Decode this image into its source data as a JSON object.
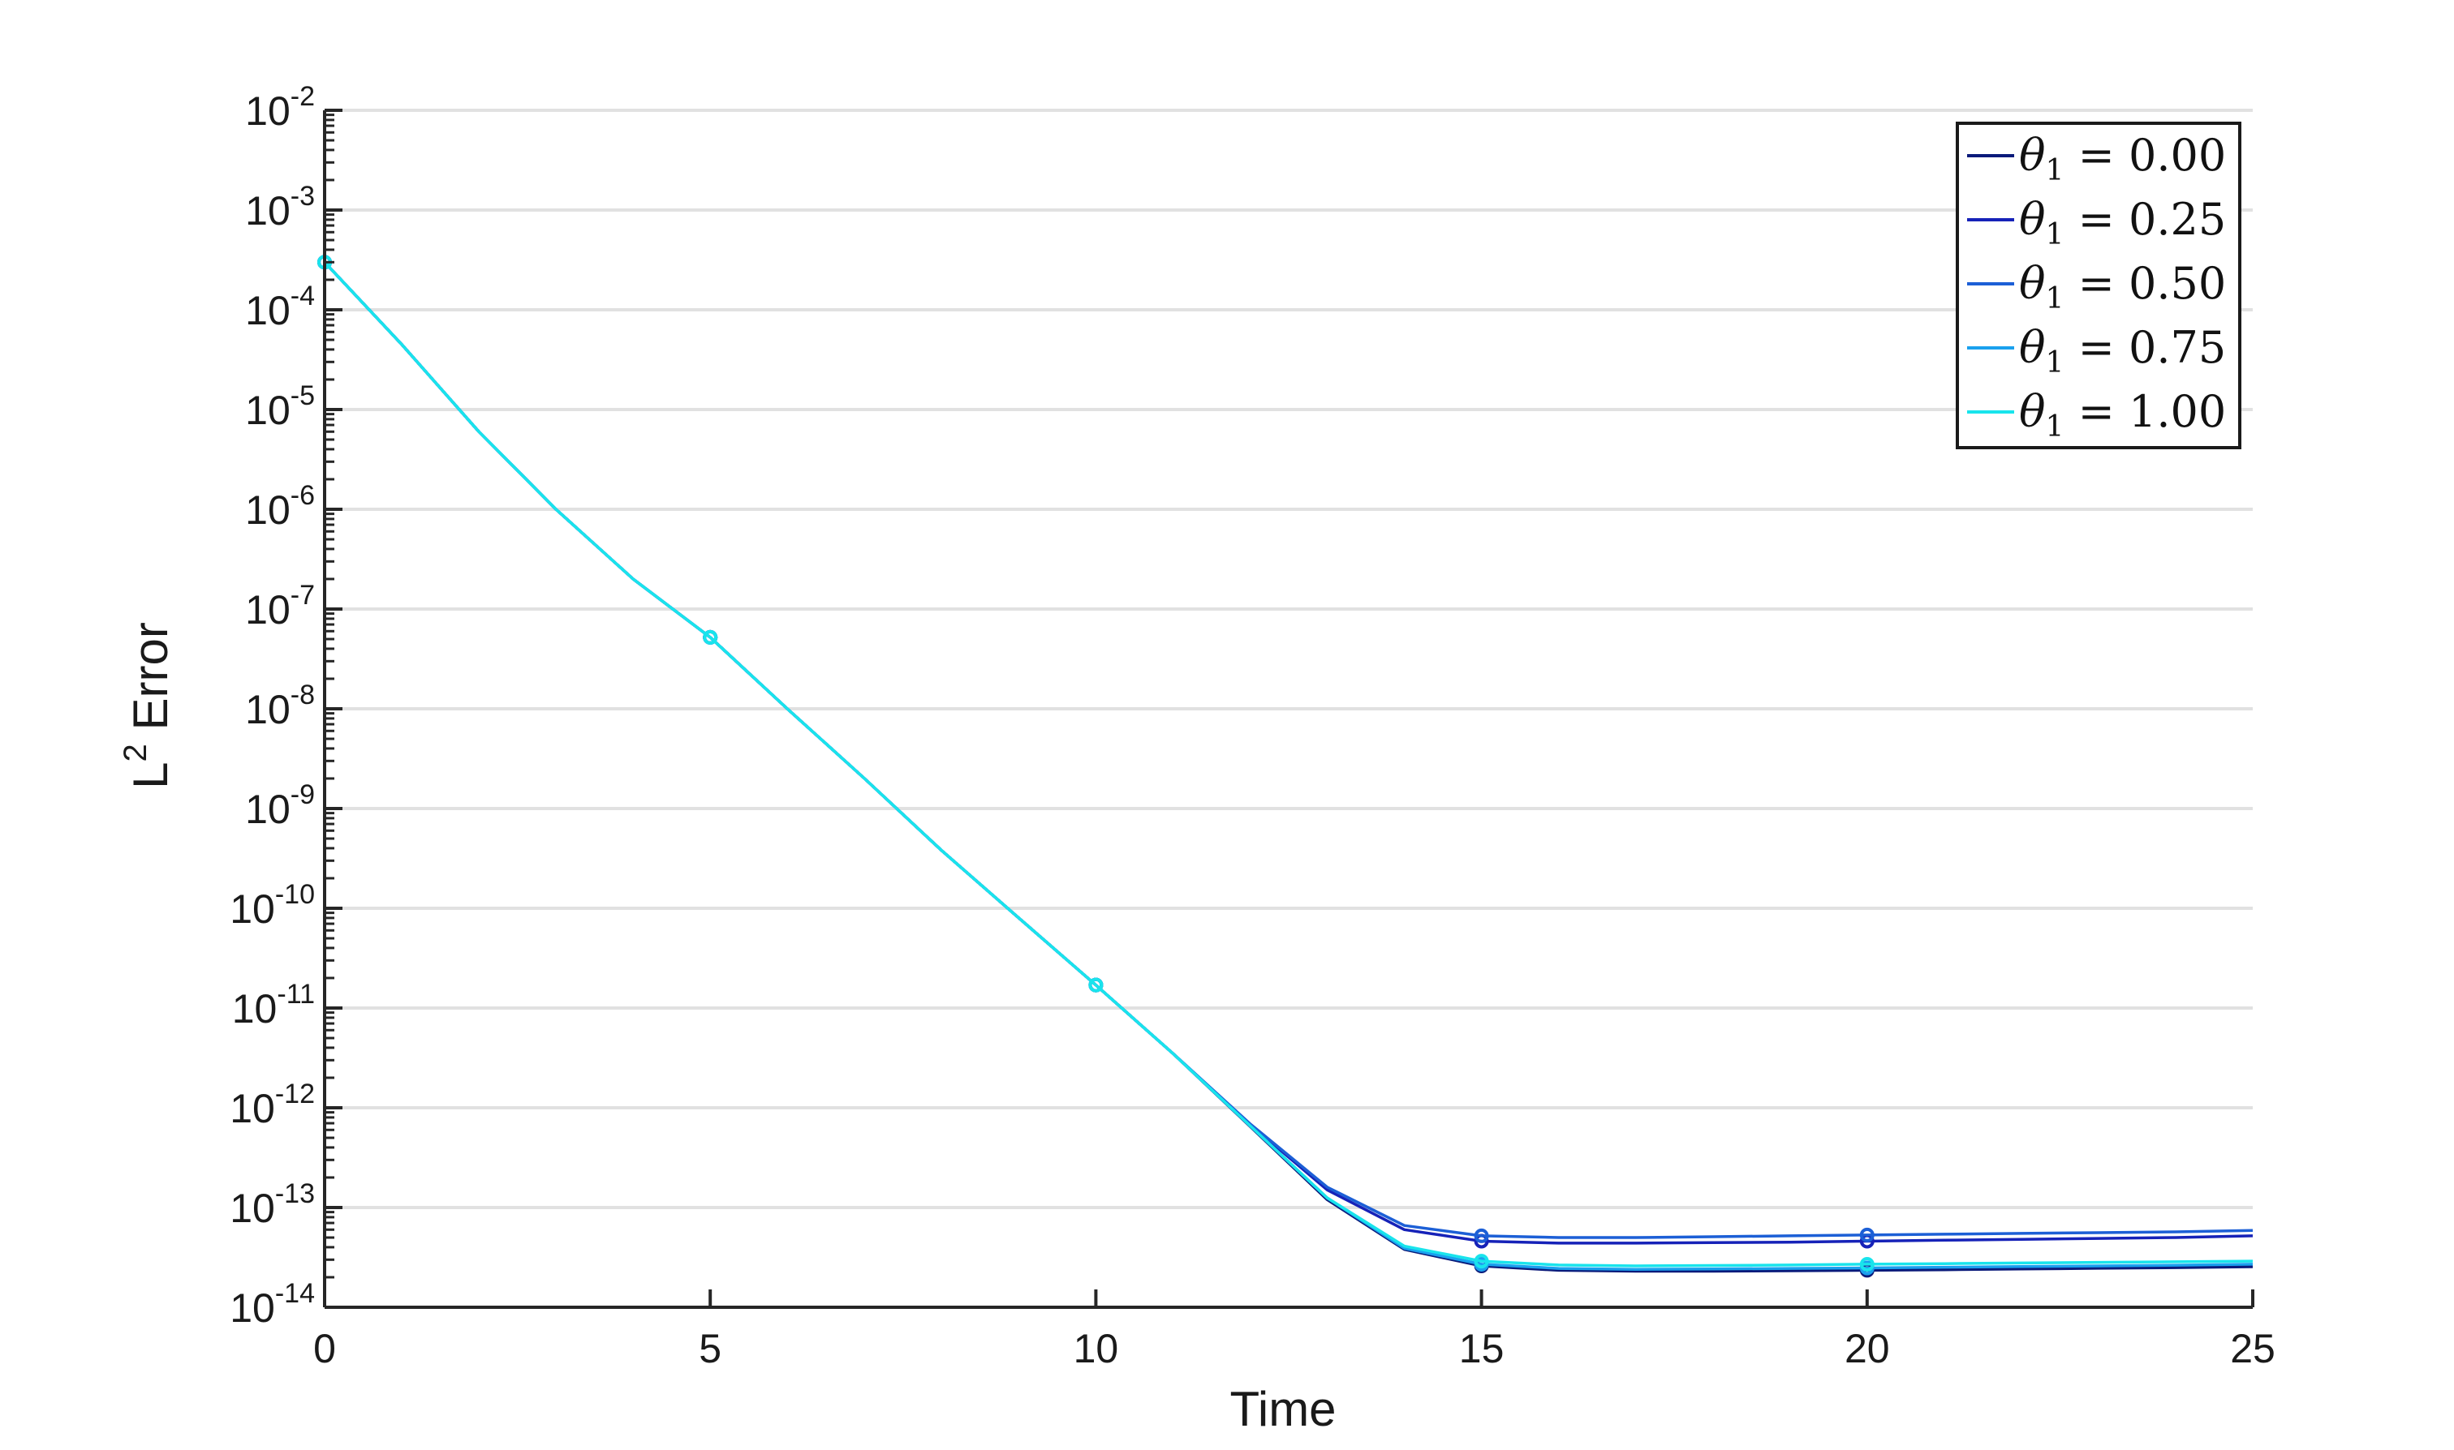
{
  "chart_data": {
    "type": "line",
    "xlabel": "Time",
    "ylabel": {
      "base": "L",
      "sup": "2",
      "rest": " Error"
    },
    "xlim": [
      0,
      25
    ],
    "ylim": [
      1e-14,
      0.01
    ],
    "yscale": "log",
    "grid": "horizontal",
    "legend_position": "top-right",
    "x_ticks": [
      "0",
      "5",
      "10",
      "15",
      "20",
      "25"
    ],
    "y_ticks": [
      {
        "base": "10",
        "exp": "-2"
      },
      {
        "base": "10",
        "exp": "-3"
      },
      {
        "base": "10",
        "exp": "-4"
      },
      {
        "base": "10",
        "exp": "-5"
      },
      {
        "base": "10",
        "exp": "-6"
      },
      {
        "base": "10",
        "exp": "-7"
      },
      {
        "base": "10",
        "exp": "-8"
      },
      {
        "base": "10",
        "exp": "-9"
      },
      {
        "base": "10",
        "exp": "-10"
      },
      {
        "base": "10",
        "exp": "-11"
      },
      {
        "base": "10",
        "exp": "-12"
      },
      {
        "base": "10",
        "exp": "-13"
      },
      {
        "base": "10",
        "exp": "-14"
      }
    ],
    "x": [
      0,
      1,
      2,
      3,
      4,
      5,
      6,
      7,
      8,
      9,
      10,
      11,
      12,
      13,
      14,
      15,
      16,
      17,
      18,
      19,
      20,
      21,
      22,
      23,
      24,
      25
    ],
    "series": [
      {
        "name": "θ1 = 0.00",
        "color": "#0a1a7a",
        "values": [
          0.0003,
          4.5e-05,
          6e-06,
          1e-06,
          2e-07,
          5.2e-08,
          1e-08,
          2e-09,
          3.8e-10,
          8e-11,
          1.7e-11,
          3.5e-12,
          6.5e-13,
          1.2e-13,
          3.8e-14,
          2.6e-14,
          2.35e-14,
          2.3e-14,
          2.3e-14,
          2.32e-14,
          2.35e-14,
          2.38e-14,
          2.42e-14,
          2.46e-14,
          2.5e-14,
          2.55e-14
        ]
      },
      {
        "name": "θ1 = 0.25",
        "color": "#1622b8",
        "values": [
          0.0003,
          4.5e-05,
          6e-06,
          1e-06,
          2e-07,
          5.2e-08,
          1e-08,
          2e-09,
          3.8e-10,
          8e-11,
          1.7e-11,
          3.5e-12,
          6.8e-13,
          1.5e-13,
          6e-14,
          4.6e-14,
          4.4e-14,
          4.4e-14,
          4.45e-14,
          4.5e-14,
          4.6e-14,
          4.7e-14,
          4.8e-14,
          4.9e-14,
          5e-14,
          5.2e-14
        ]
      },
      {
        "name": "θ1 = 0.50",
        "color": "#1c5fd6",
        "values": [
          0.0003,
          4.5e-05,
          6e-06,
          1e-06,
          2e-07,
          5.2e-08,
          1e-08,
          2e-09,
          3.8e-10,
          8e-11,
          1.7e-11,
          3.5e-12,
          6.9e-13,
          1.6e-13,
          6.6e-14,
          5.2e-14,
          5e-14,
          5e-14,
          5.1e-14,
          5.2e-14,
          5.3e-14,
          5.4e-14,
          5.5e-14,
          5.6e-14,
          5.7e-14,
          5.9e-14
        ]
      },
      {
        "name": "θ1 = 0.75",
        "color": "#1aa0ee",
        "values": [
          0.0003,
          4.5e-05,
          6e-06,
          1e-06,
          2e-07,
          5.2e-08,
          1e-08,
          2e-09,
          3.8e-10,
          8e-11,
          1.7e-11,
          3.5e-12,
          6.6e-13,
          1.25e-13,
          3.9e-14,
          2.7e-14,
          2.45e-14,
          2.4e-14,
          2.42e-14,
          2.45e-14,
          2.48e-14,
          2.52e-14,
          2.56e-14,
          2.6e-14,
          2.64e-14,
          2.7e-14
        ]
      },
      {
        "name": "θ1 = 1.00",
        "color": "#19e4ec",
        "values": [
          0.0003,
          4.5e-05,
          6e-06,
          1e-06,
          2e-07,
          5.2e-08,
          1e-08,
          2e-09,
          3.8e-10,
          8e-11,
          1.7e-11,
          3.5e-12,
          6.6e-13,
          1.25e-13,
          4.1e-14,
          2.9e-14,
          2.65e-14,
          2.6e-14,
          2.62e-14,
          2.65e-14,
          2.7e-14,
          2.74e-14,
          2.78e-14,
          2.82e-14,
          2.86e-14,
          2.9e-14
        ]
      }
    ],
    "markers_at_x": [
      0,
      5,
      10,
      15,
      20
    ],
    "legend": [
      {
        "symbol": "θ",
        "sub": "1",
        "eq": " = ",
        "value": "0.00"
      },
      {
        "symbol": "θ",
        "sub": "1",
        "eq": " = ",
        "value": "0.25"
      },
      {
        "symbol": "θ",
        "sub": "1",
        "eq": " = ",
        "value": "0.50"
      },
      {
        "symbol": "θ",
        "sub": "1",
        "eq": " = ",
        "value": "0.75"
      },
      {
        "symbol": "θ",
        "sub": "1",
        "eq": " = ",
        "value": "1.00"
      }
    ]
  }
}
